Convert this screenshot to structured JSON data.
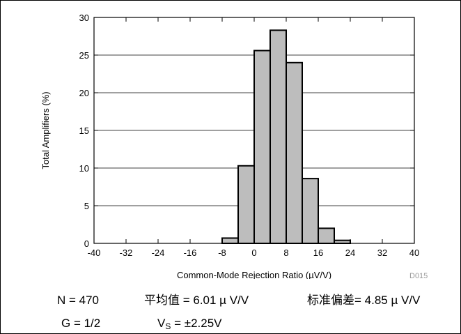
{
  "chart_data": {
    "type": "bar",
    "title": "",
    "xlabel": "Common-Mode Rejection Ratio (µV/V)",
    "ylabel": "Total Amplifiers (%)",
    "xlim": [
      -40,
      40
    ],
    "ylim": [
      0,
      30
    ],
    "xticks": [
      "-40",
      "-32",
      "-24",
      "-16",
      "-8",
      "0",
      "8",
      "16",
      "24",
      "32",
      "40"
    ],
    "yticks": [
      "0",
      "5",
      "10",
      "15",
      "20",
      "25",
      "30"
    ],
    "bin_width": 4,
    "bins": [
      {
        "start": -8,
        "value": 0.7
      },
      {
        "start": -4,
        "value": 10.3
      },
      {
        "start": 0,
        "value": 25.6
      },
      {
        "start": 4,
        "value": 28.3
      },
      {
        "start": 8,
        "value": 24.0
      },
      {
        "start": 12,
        "value": 8.6
      },
      {
        "start": 16,
        "value": 2.0
      },
      {
        "start": 20,
        "value": 0.4
      }
    ],
    "bar_color": "#bdbdbd",
    "grid": "horizontal",
    "code": "D015"
  },
  "stats": {
    "n": "N = 470",
    "mean_label": "平均值",
    "mean_value": " = 6.01 µ V/V",
    "std_label": "标准偏差",
    "std_value": "= 4.85 µ V/V",
    "gain": "G = 1/2",
    "vs_prefix": "V",
    "vs_sub": "S",
    "vs_value": " = ±2.25V"
  }
}
